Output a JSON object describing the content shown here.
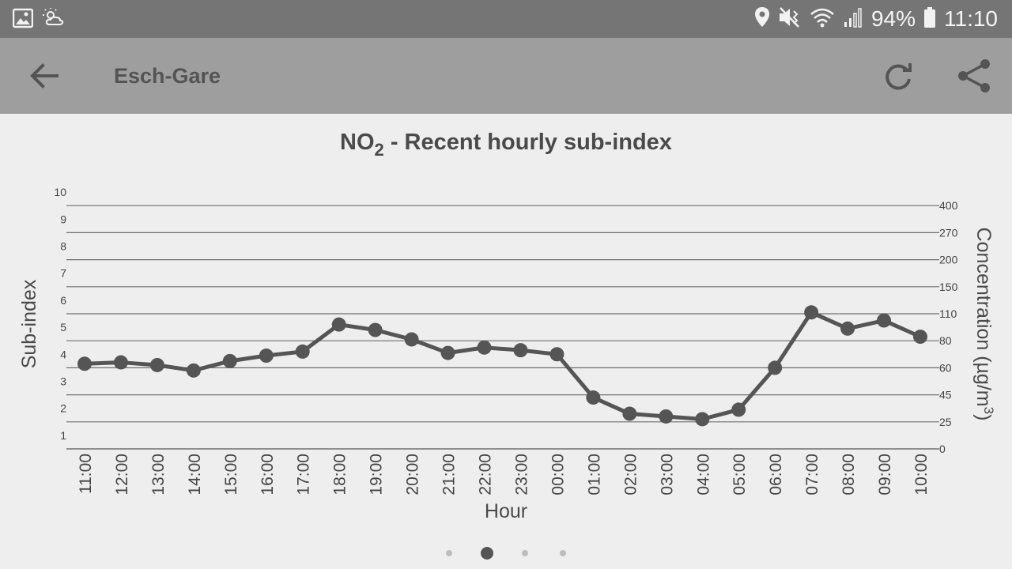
{
  "status_bar": {
    "battery": "94%",
    "time": "11:10",
    "icons": [
      "image-icon",
      "weather-icon",
      "location-icon",
      "mute-icon",
      "wifi-icon",
      "signal-icon",
      "battery-icon"
    ]
  },
  "app_bar": {
    "title": "Esch-Gare",
    "icons": [
      "back-arrow-icon",
      "refresh-icon",
      "share-icon"
    ]
  },
  "chart_data": {
    "type": "line",
    "title": "NO",
    "title_subscript": "2",
    "title_suffix": " - Recent hourly sub-index",
    "xlabel": "Hour",
    "ylabel": "Sub-index",
    "y2label_prefix": "Concentration (µg/m",
    "y2label_superscript": "3",
    "y2label_suffix": ")",
    "ylim": [
      0,
      10
    ],
    "yticks": [
      "1",
      "2",
      "3",
      "4",
      "5",
      "6",
      "7",
      "8",
      "9",
      "10"
    ],
    "y2ticks": [
      "0",
      "25",
      "45",
      "60",
      "80",
      "110",
      "150",
      "200",
      "270",
      "400"
    ],
    "grid": true,
    "categories": [
      "11:00",
      "12:00",
      "13:00",
      "14:00",
      "15:00",
      "16:00",
      "17:00",
      "18:00",
      "19:00",
      "20:00",
      "21:00",
      "22:00",
      "23:00",
      "00:00",
      "01:00",
      "02:00",
      "03:00",
      "04:00",
      "05:00",
      "06:00",
      "07:00",
      "08:00",
      "09:00",
      "10:00"
    ],
    "series": [
      {
        "values": [
          3.15,
          3.2,
          3.1,
          2.9,
          3.25,
          3.45,
          3.6,
          4.6,
          4.4,
          4.05,
          3.55,
          3.75,
          3.65,
          3.5,
          1.9,
          1.3,
          1.2,
          1.1,
          1.45,
          3.0,
          5.05,
          4.45,
          4.75,
          4.15
        ]
      }
    ],
    "colors": {
      "line": "#555555",
      "grid": "#6e6e6e",
      "text": "#444444"
    }
  },
  "pager": {
    "count": 4,
    "active": 1
  }
}
